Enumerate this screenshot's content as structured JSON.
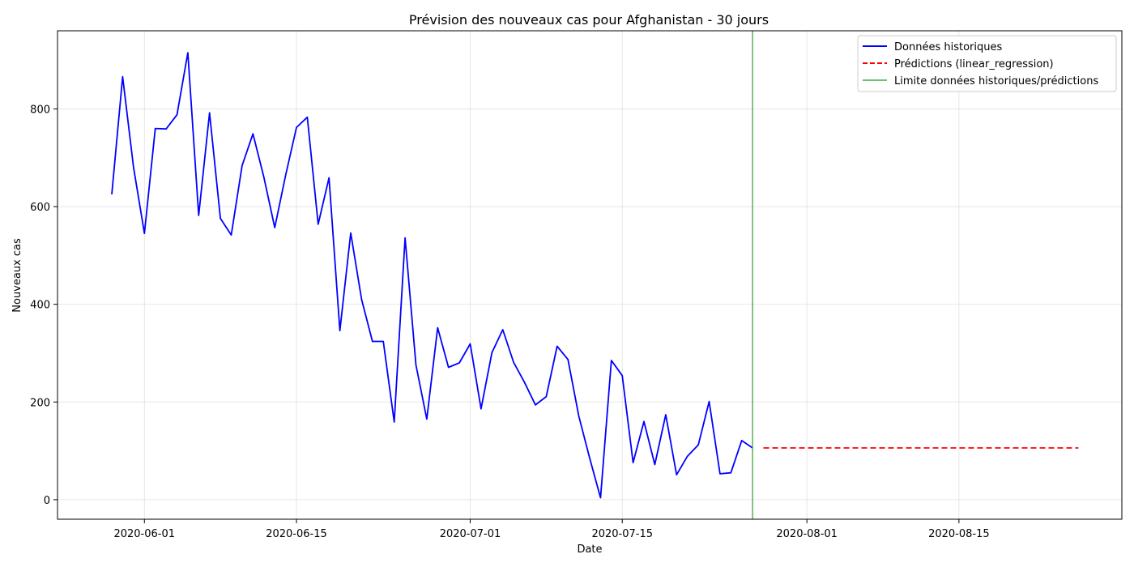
{
  "chart_data": {
    "type": "line",
    "title": "Prévision des nouveaux cas pour Afghanistan - 30 jours",
    "xlabel": "Date",
    "ylabel": "Nouveaux cas",
    "x_range": [
      "2020-05-24",
      "2020-08-30"
    ],
    "ylim": [
      -40,
      960
    ],
    "grid": true,
    "legend_position": "top-right",
    "x_ticks": [
      "2020-06-01",
      "2020-06-15",
      "2020-07-01",
      "2020-07-15",
      "2020-08-01",
      "2020-08-15"
    ],
    "y_ticks": [
      0,
      200,
      400,
      600,
      800
    ],
    "series": [
      {
        "name": "Données historiques",
        "style": "solid",
        "color": "#0000ff",
        "start": "2020-05-29",
        "values": [
          625,
          866,
          680,
          545,
          760,
          759,
          788,
          915,
          582,
          792,
          576,
          542,
          684,
          749,
          660,
          557,
          664,
          762,
          783,
          564,
          659,
          346,
          546,
          410,
          324,
          324,
          159,
          536,
          276,
          165,
          352,
          271,
          280,
          319,
          186,
          301,
          348,
          281,
          240,
          194,
          211,
          314,
          287,
          171,
          85,
          4,
          285,
          254,
          76,
          160,
          72,
          174,
          51,
          89,
          112,
          201,
          53,
          55,
          121,
          106
        ]
      },
      {
        "name": "Prédictions (linear_regression)",
        "style": "dashed",
        "color": "#ff0000",
        "x": [
          "2020-07-28",
          "2020-08-26"
        ],
        "values": [
          106,
          106
        ]
      }
    ],
    "vline": {
      "name": "Limite données historiques/prédictions",
      "x": "2020-07-27",
      "color": "#4caf50"
    }
  }
}
